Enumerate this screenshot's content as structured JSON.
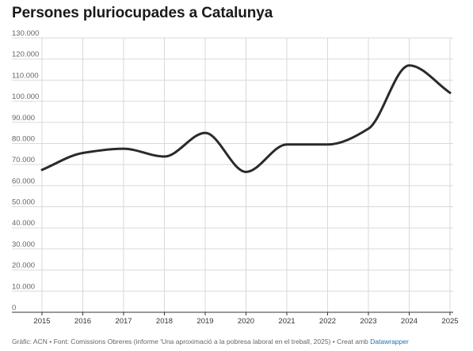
{
  "chart": {
    "title": "Persones pluriocupades a Catalunya",
    "source_text": "Gràfic: ACN • Font: Comissions Obreres (informe 'Una aproximació a la pobresa laboral en el treball, 2025) • Creat amb",
    "source_link": "Datawrapper"
  },
  "colors": {
    "line": "#2a2a2a",
    "grid": "#d9d9d9",
    "axis": "#333333",
    "tick_label": "#666666"
  },
  "chart_data": {
    "type": "line",
    "title": "Persones pluriocupades a Catalunya",
    "xlabel": "",
    "ylabel": "",
    "x": [
      "2015",
      "2016",
      "2017",
      "2018",
      "2019",
      "2020",
      "2021",
      "2022",
      "2023",
      "2024",
      "2025"
    ],
    "series": [
      {
        "values": [
          67500,
          75500,
          77500,
          73800,
          85000,
          66500,
          79500,
          79500,
          87000,
          117000,
          104000
        ]
      }
    ],
    "ylim": [
      0,
      130000
    ],
    "yticks": [
      0,
      10000,
      20000,
      30000,
      40000,
      50000,
      60000,
      70000,
      80000,
      90000,
      100000,
      110000,
      120000,
      130000
    ],
    "ytick_labels": [
      "0",
      "10.000",
      "20.000",
      "30.000",
      "40.000",
      "50.000",
      "60.000",
      "70.000",
      "80.000",
      "90.000",
      "100.000",
      "110.000",
      "120.000",
      "130.000"
    ],
    "grid": true,
    "legend": "none"
  }
}
